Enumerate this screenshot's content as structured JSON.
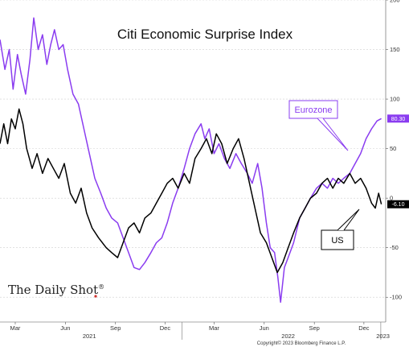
{
  "brand": {
    "text": "The Daily Shot",
    "mark": "®"
  },
  "copyright": "Copyright© 2023 Bloomberg Finance L.P.",
  "chart_data": {
    "type": "line",
    "title": "Citi Economic Surprise Index",
    "xlabel": "",
    "ylabel": "",
    "ylim": [
      -125,
      200
    ],
    "y_ticks": [
      200,
      150,
      100,
      50,
      0,
      -50,
      -100
    ],
    "y_tick_labels": [
      "200",
      "150",
      "100",
      "50",
      "0",
      "-50",
      "-100"
    ],
    "x_range": [
      "2021-02-01",
      "2023-01-10"
    ],
    "month_ticks": [
      {
        "date": "2021-03-01",
        "label": "Mar"
      },
      {
        "date": "2021-06-01",
        "label": "Jun"
      },
      {
        "date": "2021-09-01",
        "label": "Sep"
      },
      {
        "date": "2021-12-01",
        "label": "Dec"
      },
      {
        "date": "2022-03-01",
        "label": "Mar"
      },
      {
        "date": "2022-06-01",
        "label": "Jun"
      },
      {
        "date": "2022-09-01",
        "label": "Sep"
      },
      {
        "date": "2022-12-01",
        "label": "Dec"
      }
    ],
    "year_labels": [
      {
        "date": "2021-07-15",
        "label": "2021"
      },
      {
        "date": "2022-07-15",
        "label": "2022"
      },
      {
        "date": "2023-01-05",
        "label": "2023"
      }
    ],
    "grid": "horizontal-dashed",
    "series": [
      {
        "name": "Eurozone",
        "color": "#8a3cf0",
        "last_value_label": "80.30",
        "points": [
          [
            "2021-02-01",
            160
          ],
          [
            "2021-02-10",
            130
          ],
          [
            "2021-02-18",
            150
          ],
          [
            "2021-02-25",
            110
          ],
          [
            "2021-03-05",
            145
          ],
          [
            "2021-03-12",
            125
          ],
          [
            "2021-03-20",
            105
          ],
          [
            "2021-03-28",
            140
          ],
          [
            "2021-04-04",
            182
          ],
          [
            "2021-04-12",
            150
          ],
          [
            "2021-04-20",
            165
          ],
          [
            "2021-04-28",
            135
          ],
          [
            "2021-05-05",
            155
          ],
          [
            "2021-05-12",
            170
          ],
          [
            "2021-05-20",
            150
          ],
          [
            "2021-05-28",
            155
          ],
          [
            "2021-06-05",
            130
          ],
          [
            "2021-06-15",
            105
          ],
          [
            "2021-06-25",
            95
          ],
          [
            "2021-07-05",
            70
          ],
          [
            "2021-07-15",
            45
          ],
          [
            "2021-07-25",
            20
          ],
          [
            "2021-08-05",
            5
          ],
          [
            "2021-08-15",
            -10
          ],
          [
            "2021-08-25",
            -20
          ],
          [
            "2021-09-05",
            -25
          ],
          [
            "2021-09-15",
            -40
          ],
          [
            "2021-09-25",
            -55
          ],
          [
            "2021-10-05",
            -70
          ],
          [
            "2021-10-15",
            -72
          ],
          [
            "2021-10-25",
            -65
          ],
          [
            "2021-11-05",
            -55
          ],
          [
            "2021-11-15",
            -45
          ],
          [
            "2021-11-25",
            -40
          ],
          [
            "2021-12-05",
            -25
          ],
          [
            "2021-12-15",
            -5
          ],
          [
            "2021-12-25",
            10
          ],
          [
            "2022-01-05",
            30
          ],
          [
            "2022-01-15",
            50
          ],
          [
            "2022-01-25",
            65
          ],
          [
            "2022-02-05",
            75
          ],
          [
            "2022-02-12",
            60
          ],
          [
            "2022-02-20",
            70
          ],
          [
            "2022-03-01",
            45
          ],
          [
            "2022-03-10",
            55
          ],
          [
            "2022-03-20",
            40
          ],
          [
            "2022-03-30",
            30
          ],
          [
            "2022-04-10",
            45
          ],
          [
            "2022-04-20",
            35
          ],
          [
            "2022-05-01",
            25
          ],
          [
            "2022-05-10",
            15
          ],
          [
            "2022-05-20",
            35
          ],
          [
            "2022-05-28",
            10
          ],
          [
            "2022-06-05",
            -25
          ],
          [
            "2022-06-12",
            -50
          ],
          [
            "2022-06-20",
            -55
          ],
          [
            "2022-06-26",
            -80
          ],
          [
            "2022-07-01",
            -105
          ],
          [
            "2022-07-08",
            -70
          ],
          [
            "2022-07-15",
            -60
          ],
          [
            "2022-07-25",
            -45
          ],
          [
            "2022-08-05",
            -20
          ],
          [
            "2022-08-15",
            -10
          ],
          [
            "2022-08-25",
            0
          ],
          [
            "2022-09-05",
            10
          ],
          [
            "2022-09-15",
            15
          ],
          [
            "2022-09-25",
            10
          ],
          [
            "2022-10-05",
            20
          ],
          [
            "2022-10-15",
            15
          ],
          [
            "2022-10-25",
            20
          ],
          [
            "2022-11-05",
            25
          ],
          [
            "2022-11-15",
            35
          ],
          [
            "2022-11-25",
            45
          ],
          [
            "2022-12-05",
            60
          ],
          [
            "2022-12-15",
            70
          ],
          [
            "2022-12-25",
            78
          ],
          [
            "2023-01-02",
            80.3
          ]
        ]
      },
      {
        "name": "US",
        "color": "#000000",
        "last_value_label": "-6.10",
        "points": [
          [
            "2021-02-01",
            55
          ],
          [
            "2021-02-08",
            75
          ],
          [
            "2021-02-15",
            55
          ],
          [
            "2021-02-22",
            80
          ],
          [
            "2021-03-01",
            70
          ],
          [
            "2021-03-08",
            90
          ],
          [
            "2021-03-15",
            75
          ],
          [
            "2021-03-22",
            50
          ],
          [
            "2021-04-01",
            30
          ],
          [
            "2021-04-10",
            45
          ],
          [
            "2021-04-20",
            25
          ],
          [
            "2021-04-30",
            40
          ],
          [
            "2021-05-10",
            30
          ],
          [
            "2021-05-20",
            20
          ],
          [
            "2021-05-30",
            35
          ],
          [
            "2021-06-10",
            5
          ],
          [
            "2021-06-20",
            -5
          ],
          [
            "2021-06-30",
            10
          ],
          [
            "2021-07-10",
            -15
          ],
          [
            "2021-07-20",
            -30
          ],
          [
            "2021-08-01",
            -40
          ],
          [
            "2021-08-15",
            -50
          ],
          [
            "2021-08-25",
            -55
          ],
          [
            "2021-09-05",
            -60
          ],
          [
            "2021-09-15",
            -45
          ],
          [
            "2021-09-25",
            -30
          ],
          [
            "2021-10-05",
            -25
          ],
          [
            "2021-10-15",
            -35
          ],
          [
            "2021-10-25",
            -20
          ],
          [
            "2021-11-05",
            -15
          ],
          [
            "2021-11-15",
            -5
          ],
          [
            "2021-11-25",
            5
          ],
          [
            "2021-12-05",
            15
          ],
          [
            "2021-12-15",
            20
          ],
          [
            "2021-12-25",
            10
          ],
          [
            "2022-01-05",
            25
          ],
          [
            "2022-01-15",
            15
          ],
          [
            "2022-01-25",
            40
          ],
          [
            "2022-02-05",
            50
          ],
          [
            "2022-02-15",
            60
          ],
          [
            "2022-02-25",
            45
          ],
          [
            "2022-03-05",
            65
          ],
          [
            "2022-03-15",
            55
          ],
          [
            "2022-03-25",
            35
          ],
          [
            "2022-04-05",
            50
          ],
          [
            "2022-04-15",
            60
          ],
          [
            "2022-04-25",
            40
          ],
          [
            "2022-05-05",
            15
          ],
          [
            "2022-05-15",
            -10
          ],
          [
            "2022-05-25",
            -35
          ],
          [
            "2022-06-05",
            -45
          ],
          [
            "2022-06-15",
            -60
          ],
          [
            "2022-06-25",
            -75
          ],
          [
            "2022-07-05",
            -65
          ],
          [
            "2022-07-15",
            -50
          ],
          [
            "2022-07-25",
            -35
          ],
          [
            "2022-08-05",
            -20
          ],
          [
            "2022-08-15",
            -10
          ],
          [
            "2022-08-25",
            0
          ],
          [
            "2022-09-05",
            5
          ],
          [
            "2022-09-15",
            15
          ],
          [
            "2022-09-25",
            20
          ],
          [
            "2022-10-05",
            10
          ],
          [
            "2022-10-15",
            20
          ],
          [
            "2022-10-25",
            15
          ],
          [
            "2022-11-05",
            25
          ],
          [
            "2022-11-15",
            15
          ],
          [
            "2022-11-25",
            20
          ],
          [
            "2022-12-05",
            10
          ],
          [
            "2022-12-15",
            -5
          ],
          [
            "2022-12-22",
            -10
          ],
          [
            "2022-12-28",
            5
          ],
          [
            "2023-01-02",
            -6.1
          ]
        ]
      }
    ]
  }
}
